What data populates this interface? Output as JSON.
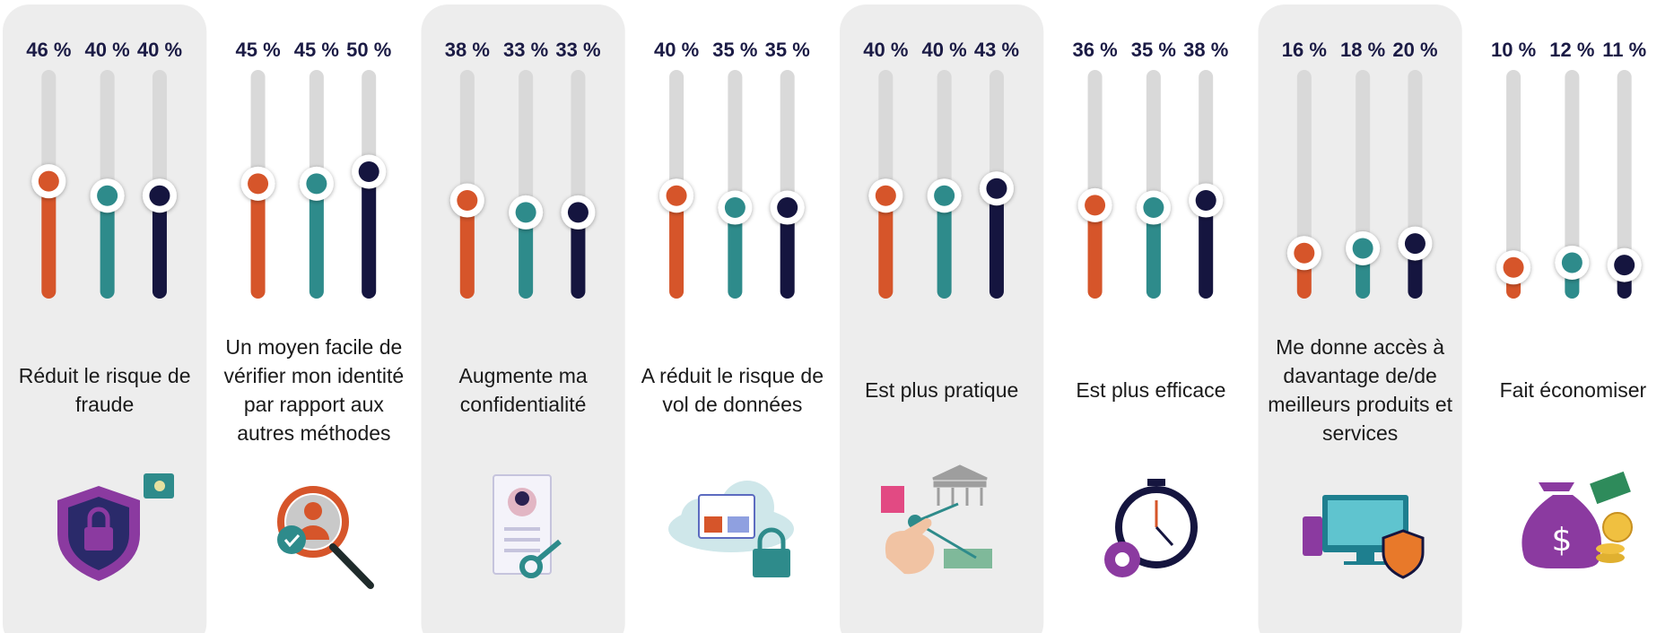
{
  "chart_data": {
    "type": "slider",
    "categories": [
      "Réduit le risque de fraude",
      "Un moyen facile de vérifier mon identité par rapport aux autres méthodes",
      "Augmente ma confidentialité",
      "A réduit le risque de vol de données",
      "Est plus pratique",
      "Est plus efficace",
      "Me donne accès à davantage de/de meilleurs produits et services",
      "Fait économiser"
    ],
    "series": [
      {
        "color": "#d6552a",
        "values": [
          46,
          45,
          38,
          40,
          40,
          36,
          16,
          10
        ],
        "value_labels": [
          "46 %",
          "45 %",
          "38 %",
          "40 %",
          "40 %",
          "36 %",
          "16 %",
          "10 %"
        ]
      },
      {
        "color": "#2e8b8b",
        "values": [
          40,
          45,
          33,
          35,
          40,
          35,
          18,
          12
        ],
        "value_labels": [
          "40 %",
          "45 %",
          "33 %",
          "35 %",
          "40 %",
          "35 %",
          "18 %",
          "12 %"
        ]
      },
      {
        "color": "#15153f",
        "values": [
          40,
          50,
          33,
          35,
          43,
          38,
          20,
          11
        ],
        "value_labels": [
          "40 %",
          "50 %",
          "33 %",
          "35 %",
          "43 %",
          "38 %",
          "20 %",
          "11 %"
        ]
      }
    ],
    "ylim": [
      0,
      100
    ]
  }
}
